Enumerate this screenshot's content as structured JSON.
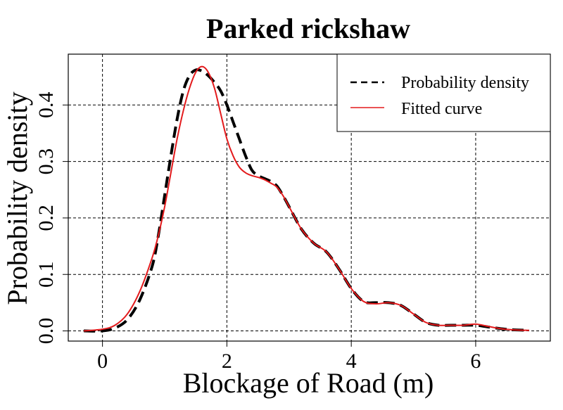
{
  "chart_data": {
    "type": "line",
    "title": "Parked rickshaw",
    "xlabel": "Blockage of Road (m)",
    "ylabel": "Probability density",
    "xlim": [
      -0.55,
      7.2
    ],
    "ylim": [
      -0.018,
      0.49
    ],
    "xticks": [
      "0",
      "2",
      "4",
      "6"
    ],
    "yticks": [
      "0.0",
      "0.1",
      "0.2",
      "0.3",
      "0.4"
    ],
    "grid": true,
    "legend_position": "top-right",
    "series": [
      {
        "name": "Probability density",
        "style": "dashed",
        "color": "#000000",
        "x": [
          -0.3,
          0.0,
          0.2,
          0.4,
          0.6,
          0.8,
          0.9,
          1.0,
          1.1,
          1.2,
          1.3,
          1.4,
          1.5,
          1.6,
          1.7,
          1.8,
          1.9,
          2.0,
          2.1,
          2.2,
          2.3,
          2.4,
          2.5,
          2.6,
          2.7,
          2.8,
          2.9,
          3.0,
          3.2,
          3.4,
          3.6,
          3.8,
          4.0,
          4.2,
          4.4,
          4.6,
          4.8,
          5.0,
          5.2,
          5.4,
          5.6,
          5.8,
          6.0,
          6.2,
          6.4,
          6.6,
          6.86
        ],
        "y": [
          0.0,
          0.0,
          0.005,
          0.02,
          0.055,
          0.115,
          0.17,
          0.24,
          0.31,
          0.375,
          0.425,
          0.452,
          0.462,
          0.46,
          0.452,
          0.44,
          0.425,
          0.4,
          0.37,
          0.34,
          0.31,
          0.285,
          0.275,
          0.27,
          0.265,
          0.257,
          0.24,
          0.22,
          0.18,
          0.155,
          0.14,
          0.11,
          0.075,
          0.052,
          0.05,
          0.05,
          0.045,
          0.03,
          0.015,
          0.01,
          0.01,
          0.01,
          0.01,
          0.007,
          0.004,
          0.002,
          0.001
        ]
      },
      {
        "name": "Fitted curve",
        "style": "solid",
        "color": "#e31a1c",
        "x": [
          -0.3,
          0.0,
          0.2,
          0.4,
          0.6,
          0.8,
          0.9,
          1.0,
          1.1,
          1.2,
          1.3,
          1.4,
          1.5,
          1.6,
          1.7,
          1.8,
          1.9,
          2.0,
          2.1,
          2.2,
          2.3,
          2.4,
          2.5,
          2.6,
          2.7,
          2.8,
          2.9,
          3.0,
          3.2,
          3.4,
          3.6,
          3.8,
          4.0,
          4.2,
          4.4,
          4.6,
          4.8,
          5.0,
          5.2,
          5.4,
          5.6,
          5.8,
          6.0,
          6.2,
          6.4,
          6.6,
          6.86
        ],
        "y": [
          0.0,
          0.003,
          0.01,
          0.03,
          0.07,
          0.13,
          0.17,
          0.22,
          0.28,
          0.34,
          0.39,
          0.43,
          0.458,
          0.468,
          0.458,
          0.43,
          0.385,
          0.34,
          0.31,
          0.29,
          0.28,
          0.275,
          0.272,
          0.268,
          0.262,
          0.255,
          0.24,
          0.22,
          0.18,
          0.155,
          0.14,
          0.11,
          0.075,
          0.052,
          0.048,
          0.05,
          0.045,
          0.03,
          0.015,
          0.01,
          0.01,
          0.01,
          0.012,
          0.008,
          0.004,
          0.002,
          0.001
        ]
      }
    ]
  }
}
